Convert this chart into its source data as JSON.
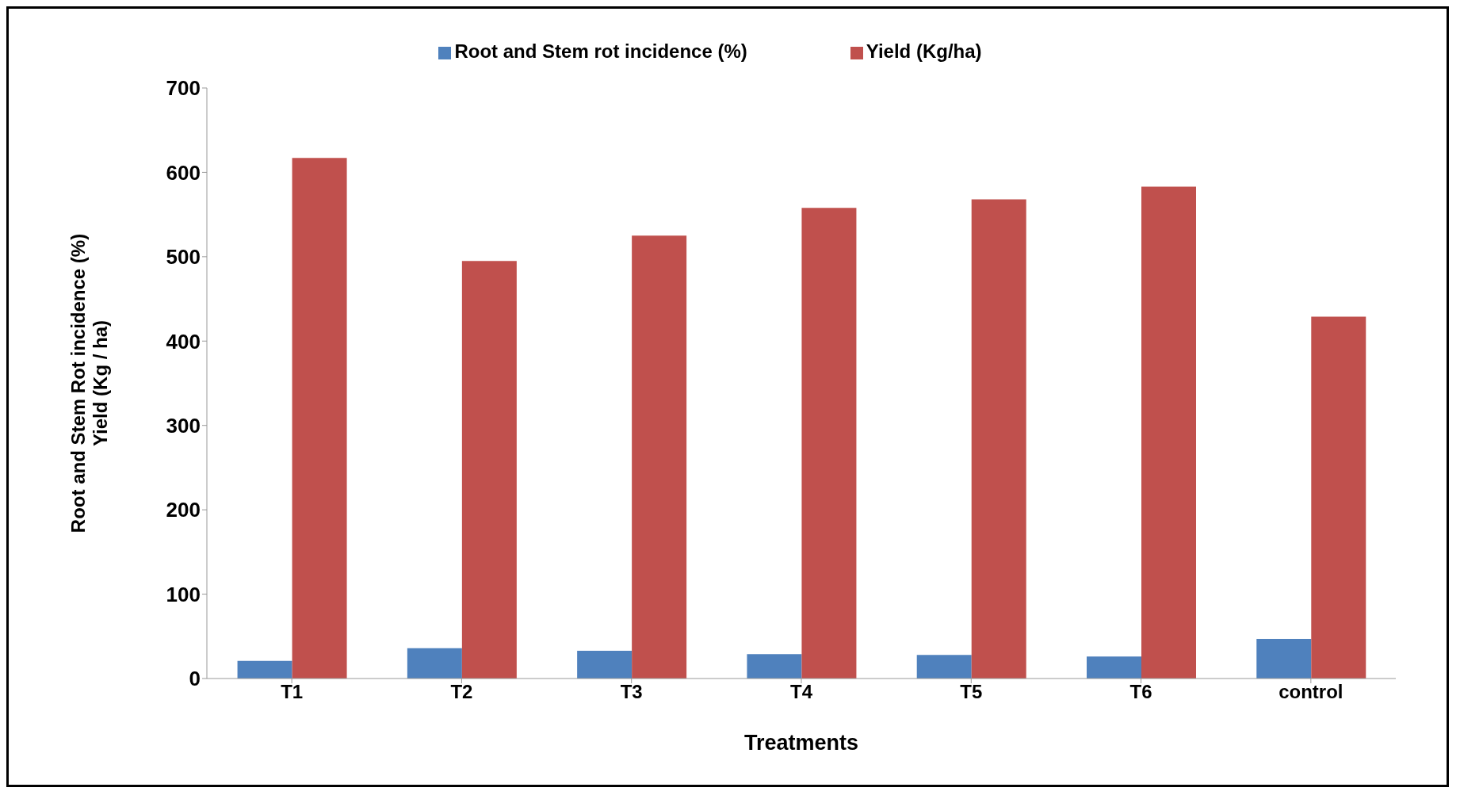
{
  "chart_data": {
    "type": "bar",
    "xlabel": "Treatments",
    "ylabel": "Root and Stem Rot  incidence (%)\nYield (Kg / ha)",
    "categories": [
      "T1",
      "T2",
      "T3",
      "T4",
      "T5",
      "T6",
      "control"
    ],
    "series": [
      {
        "name": "Root and Stem rot incidence (%)",
        "color": "#4f81bd",
        "values": [
          21,
          36,
          33,
          29,
          28,
          26,
          47
        ]
      },
      {
        "name": "Yield (Kg/ha)",
        "color": "#c0504d",
        "values": [
          617,
          495,
          525,
          558,
          568,
          583,
          429
        ]
      }
    ],
    "ylim": [
      0,
      700
    ],
    "yticks": [
      0,
      100,
      200,
      300,
      400,
      500,
      600,
      700
    ],
    "legend": "top",
    "grid": false
  }
}
